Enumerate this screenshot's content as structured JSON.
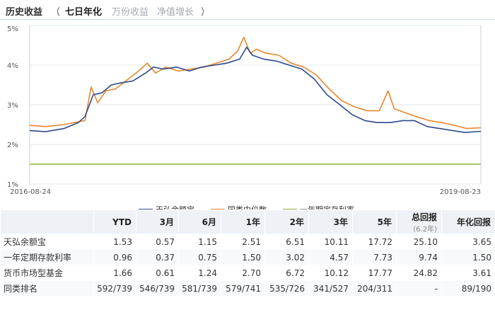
{
  "header": {
    "title": "历史收益",
    "paren_open": "（",
    "paren_close": "）",
    "tabs": [
      {
        "label": "七日年化",
        "active": true
      },
      {
        "label": "万份收益",
        "active": false
      },
      {
        "label": "净值增长",
        "active": false
      }
    ]
  },
  "chart_data": {
    "type": "line",
    "x_start_label": "2016-08-24",
    "x_end_label": "2019-08-23",
    "x_start": "2016-08-24",
    "x_end": "2019-08-23",
    "y_unit": "%",
    "ylim": [
      1,
      5
    ],
    "yticks": [
      "5%",
      "4%",
      "3%",
      "2%",
      "1%"
    ],
    "grid": true,
    "legend_position": "bottom",
    "series": [
      {
        "name": "天弘余额宝",
        "color": "#2f4a8a",
        "points": [
          [
            "2016-08-24",
            2.35
          ],
          [
            "2016-10-01",
            2.32
          ],
          [
            "2016-11-15",
            2.4
          ],
          [
            "2016-12-20",
            2.55
          ],
          [
            "2017-01-05",
            2.7
          ],
          [
            "2017-01-25",
            3.25
          ],
          [
            "2017-02-15",
            3.3
          ],
          [
            "2017-03-10",
            3.5
          ],
          [
            "2017-04-01",
            3.55
          ],
          [
            "2017-05-01",
            3.6
          ],
          [
            "2017-06-01",
            3.8
          ],
          [
            "2017-06-20",
            3.95
          ],
          [
            "2017-07-15",
            3.9
          ],
          [
            "2017-08-15",
            3.95
          ],
          [
            "2017-09-15",
            3.85
          ],
          [
            "2017-10-15",
            3.95
          ],
          [
            "2017-11-15",
            4.0
          ],
          [
            "2017-12-15",
            4.05
          ],
          [
            "2018-01-15",
            4.15
          ],
          [
            "2018-02-01",
            4.45
          ],
          [
            "2018-02-15",
            4.25
          ],
          [
            "2018-03-15",
            4.15
          ],
          [
            "2018-04-15",
            4.1
          ],
          [
            "2018-05-15",
            4.0
          ],
          [
            "2018-06-15",
            3.9
          ],
          [
            "2018-07-15",
            3.65
          ],
          [
            "2018-08-15",
            3.25
          ],
          [
            "2018-09-15",
            3.0
          ],
          [
            "2018-10-15",
            2.75
          ],
          [
            "2018-11-15",
            2.6
          ],
          [
            "2018-12-15",
            2.55
          ],
          [
            "2019-01-15",
            2.55
          ],
          [
            "2019-02-15",
            2.6
          ],
          [
            "2019-03-15",
            2.6
          ],
          [
            "2019-04-15",
            2.45
          ],
          [
            "2019-05-15",
            2.4
          ],
          [
            "2019-06-15",
            2.35
          ],
          [
            "2019-07-15",
            2.3
          ],
          [
            "2019-08-23",
            2.33
          ]
        ]
      },
      {
        "name": "同类中位数",
        "color": "#e8862a",
        "points": [
          [
            "2016-08-24",
            2.48
          ],
          [
            "2016-10-01",
            2.45
          ],
          [
            "2016-11-15",
            2.5
          ],
          [
            "2016-12-10",
            2.55
          ],
          [
            "2017-01-05",
            2.6
          ],
          [
            "2017-01-20",
            3.45
          ],
          [
            "2017-02-05",
            3.05
          ],
          [
            "2017-02-25",
            3.35
          ],
          [
            "2017-03-20",
            3.4
          ],
          [
            "2017-04-20",
            3.65
          ],
          [
            "2017-05-15",
            3.85
          ],
          [
            "2017-06-05",
            4.05
          ],
          [
            "2017-06-25",
            3.8
          ],
          [
            "2017-07-20",
            3.95
          ],
          [
            "2017-08-20",
            3.85
          ],
          [
            "2017-09-20",
            3.9
          ],
          [
            "2017-10-20",
            3.95
          ],
          [
            "2017-11-20",
            4.05
          ],
          [
            "2017-12-20",
            4.15
          ],
          [
            "2018-01-10",
            4.35
          ],
          [
            "2018-01-25",
            4.7
          ],
          [
            "2018-02-10",
            4.3
          ],
          [
            "2018-02-25",
            4.4
          ],
          [
            "2018-03-20",
            4.3
          ],
          [
            "2018-04-20",
            4.25
          ],
          [
            "2018-05-20",
            4.05
          ],
          [
            "2018-06-20",
            3.95
          ],
          [
            "2018-07-20",
            3.75
          ],
          [
            "2018-08-20",
            3.4
          ],
          [
            "2018-09-20",
            3.1
          ],
          [
            "2018-10-20",
            2.95
          ],
          [
            "2018-11-20",
            2.85
          ],
          [
            "2018-12-20",
            2.85
          ],
          [
            "2019-01-10",
            3.35
          ],
          [
            "2019-01-25",
            2.9
          ],
          [
            "2019-02-20",
            2.8
          ],
          [
            "2019-03-20",
            2.7
          ],
          [
            "2019-04-20",
            2.6
          ],
          [
            "2019-05-20",
            2.55
          ],
          [
            "2019-06-20",
            2.48
          ],
          [
            "2019-07-20",
            2.4
          ],
          [
            "2019-08-23",
            2.42
          ]
        ]
      },
      {
        "name": "一年期定存利率",
        "color": "#8cb33b",
        "points": [
          [
            "2016-08-24",
            1.5
          ],
          [
            "2019-08-23",
            1.5
          ]
        ]
      }
    ]
  },
  "table": {
    "headers": [
      {
        "label": ""
      },
      {
        "label": "YTD"
      },
      {
        "label": "3月"
      },
      {
        "label": "6月"
      },
      {
        "label": "1年"
      },
      {
        "label": "2年"
      },
      {
        "label": "3年"
      },
      {
        "label": "5年"
      },
      {
        "label": "总回报",
        "sub": "(6.2年)"
      },
      {
        "label": "年化回报"
      }
    ],
    "rows": [
      [
        "天弘余额宝",
        "1.53",
        "0.57",
        "1.15",
        "2.51",
        "6.51",
        "10.11",
        "17.72",
        "25.10",
        "3.65"
      ],
      [
        "一年定期存款利率",
        "0.96",
        "0.37",
        "0.75",
        "1.50",
        "3.02",
        "4.57",
        "7.73",
        "9.74",
        "1.50"
      ],
      [
        "货币市场型基金",
        "1.66",
        "0.61",
        "1.24",
        "2.70",
        "6.72",
        "10.12",
        "17.77",
        "24.82",
        "3.61"
      ],
      [
        "同类排名",
        "592/739",
        "546/739",
        "581/739",
        "579/741",
        "535/726",
        "341/527",
        "204/311",
        "-",
        "89/190"
      ]
    ]
  }
}
